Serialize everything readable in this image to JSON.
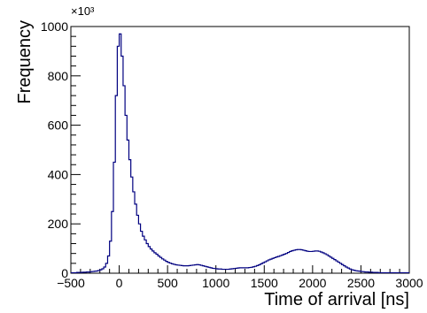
{
  "chart_data": {
    "type": "histogram",
    "title": "",
    "xlabel": "Time of arrival [ns]",
    "ylabel": "Frequency",
    "y_exponent_label": "×10³",
    "xlim": [
      -500,
      3000
    ],
    "ylim": [
      0,
      1000
    ],
    "x_ticks": [
      -500,
      0,
      500,
      1000,
      1500,
      2000,
      2500,
      3000
    ],
    "x_tick_labels": [
      "−500",
      "0",
      "500",
      "1000",
      "1500",
      "2000",
      "2500",
      "3000"
    ],
    "y_ticks": [
      0,
      200,
      400,
      600,
      800,
      1000
    ],
    "y_tick_labels": [
      "0",
      "200",
      "400",
      "600",
      "800",
      "1000"
    ],
    "line_color": "#000080",
    "grid": false,
    "bin_width": 20,
    "x": [
      -500,
      -480,
      -460,
      -440,
      -420,
      -400,
      -380,
      -360,
      -340,
      -320,
      -300,
      -280,
      -260,
      -240,
      -220,
      -200,
      -180,
      -160,
      -140,
      -120,
      -100,
      -80,
      -60,
      -40,
      -20,
      0,
      20,
      40,
      60,
      80,
      100,
      120,
      140,
      160,
      180,
      200,
      220,
      240,
      260,
      280,
      300,
      320,
      340,
      360,
      380,
      400,
      420,
      440,
      460,
      480,
      500,
      520,
      540,
      560,
      580,
      600,
      620,
      640,
      660,
      680,
      700,
      720,
      740,
      760,
      780,
      800,
      820,
      840,
      860,
      880,
      900,
      920,
      940,
      960,
      980,
      1000,
      1020,
      1040,
      1060,
      1080,
      1100,
      1120,
      1140,
      1160,
      1180,
      1200,
      1220,
      1240,
      1260,
      1280,
      1300,
      1320,
      1340,
      1360,
      1380,
      1400,
      1420,
      1440,
      1460,
      1480,
      1500,
      1520,
      1540,
      1560,
      1580,
      1600,
      1620,
      1640,
      1660,
      1680,
      1700,
      1720,
      1740,
      1760,
      1780,
      1800,
      1820,
      1840,
      1860,
      1880,
      1900,
      1920,
      1940,
      1960,
      1980,
      2000,
      2020,
      2040,
      2060,
      2080,
      2100,
      2120,
      2140,
      2160,
      2180,
      2200,
      2220,
      2240,
      2260,
      2280,
      2300,
      2320,
      2340,
      2360,
      2380,
      2400,
      2420,
      2440,
      2460,
      2480,
      2500,
      2520,
      2540,
      2560,
      2580,
      2600,
      2620,
      2640,
      2660,
      2680,
      2700,
      2720,
      2740,
      2760,
      2780,
      2800,
      2820,
      2840,
      2860,
      2880,
      2900,
      2920,
      2940,
      2960,
      2980
    ],
    "values": [
      2,
      2,
      2,
      3,
      3,
      3,
      4,
      4,
      5,
      5,
      6,
      7,
      8,
      9,
      11,
      14,
      18,
      25,
      40,
      70,
      130,
      250,
      450,
      720,
      920,
      970,
      880,
      760,
      640,
      540,
      460,
      390,
      330,
      280,
      235,
      200,
      170,
      150,
      135,
      120,
      108,
      98,
      90,
      83,
      77,
      70,
      64,
      58,
      53,
      48,
      44,
      41,
      38,
      36,
      34,
      33,
      32,
      31,
      30,
      30,
      30,
      31,
      32,
      33,
      34,
      35,
      34,
      32,
      30,
      28,
      26,
      24,
      22,
      20,
      19,
      18,
      17,
      17,
      16,
      16,
      16,
      16,
      17,
      18,
      19,
      20,
      21,
      22,
      22,
      22,
      22,
      22,
      23,
      24,
      26,
      28,
      31,
      34,
      38,
      42,
      46,
      50,
      54,
      57,
      60,
      63,
      66,
      68,
      71,
      74,
      77,
      80,
      84,
      88,
      91,
      93,
      95,
      96,
      96,
      95,
      93,
      91,
      89,
      88,
      88,
      89,
      90,
      90,
      89,
      86,
      83,
      79,
      75,
      70,
      65,
      60,
      55,
      50,
      45,
      40,
      35,
      30,
      25,
      21,
      17,
      14,
      12,
      10,
      9,
      8,
      7,
      6,
      5,
      5,
      4,
      4,
      3,
      3,
      3,
      2,
      2,
      2,
      2,
      2,
      2,
      2,
      2,
      2,
      2,
      2,
      2,
      2,
      2,
      2,
      2
    ]
  }
}
